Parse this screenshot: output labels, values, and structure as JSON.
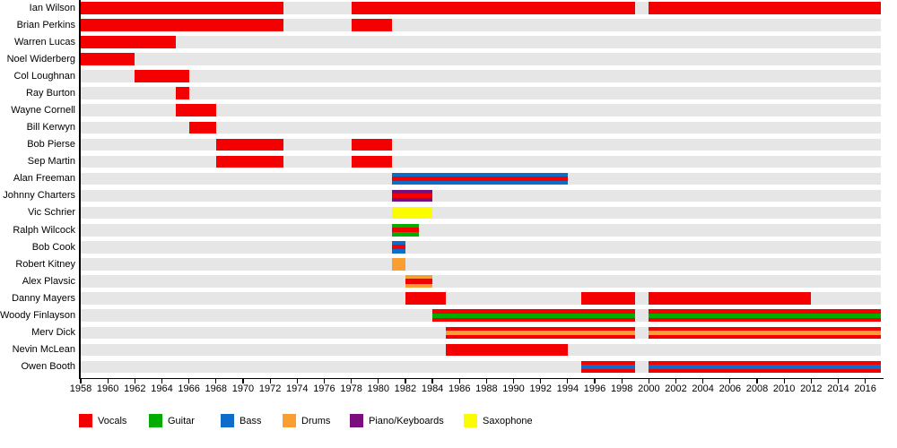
{
  "chart_data": {
    "type": "timeline",
    "axis": {
      "start_year": 1958,
      "end_year": 2017,
      "tick_interval": 2,
      "tick_years": [
        1958,
        1960,
        1962,
        1964,
        1966,
        1968,
        1970,
        1972,
        1974,
        1976,
        1978,
        1980,
        1982,
        1984,
        1986,
        1988,
        1990,
        1992,
        1994,
        1996,
        1998,
        2000,
        2002,
        2004,
        2006,
        2008,
        2010,
        2012,
        2014,
        2016
      ]
    },
    "legend": [
      {
        "key": "vocals",
        "label": "Vocals",
        "color": "#f50000"
      },
      {
        "key": "guitar",
        "label": "Guitar",
        "color": "#00ad00"
      },
      {
        "key": "bass",
        "label": "Bass",
        "color": "#0d6dc9"
      },
      {
        "key": "drums",
        "label": "Drums",
        "color": "#fb9e32"
      },
      {
        "key": "piano",
        "label": "Piano/Keyboards",
        "color": "#7c0d7c"
      },
      {
        "key": "saxophone",
        "label": "Saxophone",
        "color": "#fcfc00"
      }
    ],
    "members": [
      {
        "name": "Ian Wilson",
        "segments": [
          {
            "from": 1958,
            "to": 1973,
            "layers": [
              "vocals"
            ]
          },
          {
            "from": 1978,
            "to": 1999,
            "layers": [
              "vocals"
            ]
          },
          {
            "from": 2000,
            "to": "present",
            "layers": [
              "vocals"
            ]
          }
        ]
      },
      {
        "name": "Brian Perkins",
        "segments": [
          {
            "from": 1958,
            "to": 1973,
            "layers": [
              "vocals"
            ]
          },
          {
            "from": 1978,
            "to": 1981,
            "layers": [
              "vocals"
            ]
          }
        ]
      },
      {
        "name": "Warren Lucas",
        "segments": [
          {
            "from": 1958,
            "to": 1965,
            "layers": [
              "vocals"
            ]
          }
        ]
      },
      {
        "name": "Noel Widerberg",
        "segments": [
          {
            "from": 1958,
            "to": 1962,
            "layers": [
              "vocals"
            ]
          }
        ]
      },
      {
        "name": "Col Loughnan",
        "segments": [
          {
            "from": 1962,
            "to": 1966,
            "layers": [
              "vocals"
            ]
          }
        ]
      },
      {
        "name": "Ray Burton",
        "segments": [
          {
            "from": 1965,
            "to": 1966,
            "layers": [
              "vocals"
            ]
          }
        ]
      },
      {
        "name": "Wayne Cornell",
        "segments": [
          {
            "from": 1965,
            "to": 1968,
            "layers": [
              "vocals"
            ]
          }
        ]
      },
      {
        "name": "Bill Kerwyn",
        "segments": [
          {
            "from": 1966,
            "to": 1968,
            "layers": [
              "vocals"
            ]
          }
        ]
      },
      {
        "name": "Bob Pierse",
        "segments": [
          {
            "from": 1968,
            "to": 1973,
            "layers": [
              "vocals"
            ]
          },
          {
            "from": 1978,
            "to": 1981,
            "layers": [
              "vocals"
            ]
          }
        ]
      },
      {
        "name": "Sep Martin",
        "segments": [
          {
            "from": 1968,
            "to": 1973,
            "layers": [
              "vocals"
            ]
          },
          {
            "from": 1978,
            "to": 1981,
            "layers": [
              "vocals"
            ]
          }
        ]
      },
      {
        "name": "Alan Freeman",
        "segments": [
          {
            "from": 1981,
            "to": 1994,
            "layers": [
              "bass",
              "vocals",
              "bass"
            ]
          }
        ]
      },
      {
        "name": "Johnny Charters",
        "segments": [
          {
            "from": 1981,
            "to": 1984,
            "layers": [
              "piano",
              "vocals",
              "piano"
            ]
          }
        ]
      },
      {
        "name": "Vic Schrier",
        "segments": [
          {
            "from": 1981,
            "to": 1984,
            "layers": [
              "saxophone"
            ]
          }
        ]
      },
      {
        "name": "Ralph Wilcock",
        "segments": [
          {
            "from": 1981,
            "to": 1983,
            "layers": [
              "guitar",
              "vocals",
              "guitar"
            ]
          }
        ]
      },
      {
        "name": "Bob Cook",
        "segments": [
          {
            "from": 1981,
            "to": 1982,
            "layers": [
              "bass",
              "vocals",
              "bass"
            ]
          }
        ]
      },
      {
        "name": "Robert Kitney",
        "segments": [
          {
            "from": 1981,
            "to": 1982,
            "layers": [
              "drums"
            ]
          }
        ]
      },
      {
        "name": "Alex Plavsic",
        "segments": [
          {
            "from": 1982,
            "to": 1984,
            "layers": [
              "drums",
              "vocals",
              "drums"
            ]
          }
        ]
      },
      {
        "name": "Danny Mayers",
        "segments": [
          {
            "from": 1982,
            "to": 1985,
            "layers": [
              "vocals"
            ]
          },
          {
            "from": 1995,
            "to": 1999,
            "layers": [
              "vocals"
            ]
          },
          {
            "from": 2000,
            "to": 2012,
            "layers": [
              "vocals"
            ]
          }
        ]
      },
      {
        "name": "Woody Finlayson",
        "segments": [
          {
            "from": 1984,
            "to": 1999,
            "layers": [
              "vocals",
              "guitar",
              "vocals"
            ]
          },
          {
            "from": 2000,
            "to": "present",
            "layers": [
              "vocals",
              "guitar",
              "vocals"
            ]
          }
        ]
      },
      {
        "name": "Merv Dick",
        "segments": [
          {
            "from": 1985,
            "to": 1999,
            "layers": [
              "vocals",
              "drums",
              "vocals"
            ]
          },
          {
            "from": 2000,
            "to": "present",
            "layers": [
              "vocals",
              "drums",
              "vocals"
            ]
          }
        ]
      },
      {
        "name": "Nevin McLean",
        "segments": [
          {
            "from": 1985,
            "to": 1994,
            "layers": [
              "vocals"
            ]
          }
        ]
      },
      {
        "name": "Owen Booth",
        "segments": [
          {
            "from": 1995,
            "to": 1999,
            "layers": [
              "vocals",
              "bass",
              "vocals"
            ]
          },
          {
            "from": 2000,
            "to": "present",
            "layers": [
              "vocals",
              "bass",
              "vocals"
            ]
          }
        ]
      }
    ]
  }
}
